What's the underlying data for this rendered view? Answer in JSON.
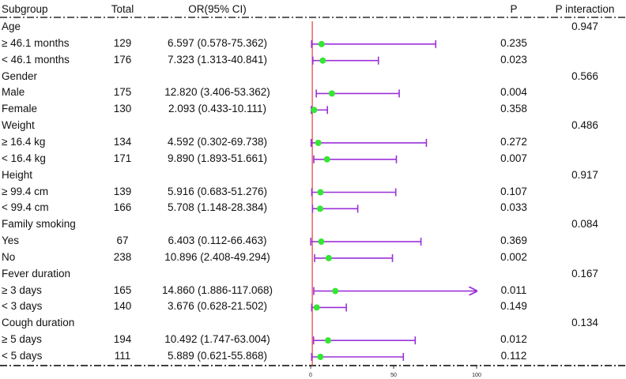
{
  "headers": {
    "subgroup": "Subgroup",
    "total": "Total",
    "or": "OR(95% CI)",
    "p": "P",
    "p_interaction": "P interaction"
  },
  "groups": [
    {
      "name": "Age",
      "p_interaction": "0.947",
      "rows": [
        {
          "label": "≥ 46.1 months",
          "total": "129",
          "or_text": "6.597 (0.578-75.362)",
          "p": "0.235"
        },
        {
          "label": "< 46.1 months",
          "total": "176",
          "or_text": "7.323 (1.313-40.841)",
          "p": "0.023"
        }
      ]
    },
    {
      "name": "Gender",
      "p_interaction": "0.566",
      "rows": [
        {
          "label": "Male",
          "total": "175",
          "or_text": "12.820 (3.406-53.362)",
          "p": "0.004"
        },
        {
          "label": "Female",
          "total": "130",
          "or_text": "2.093 (0.433-10.111)",
          "p": "0.358"
        }
      ]
    },
    {
      "name": "Weight",
      "p_interaction": "0.486",
      "rows": [
        {
          "label": "≥ 16.4 kg",
          "total": "134",
          "or_text": "4.592 (0.302-69.738)",
          "p": "0.272"
        },
        {
          "label": "< 16.4 kg",
          "total": "171",
          "or_text": "9.890 (1.893-51.661)",
          "p": "0.007"
        }
      ]
    },
    {
      "name": "Height",
      "p_interaction": "0.917",
      "rows": [
        {
          "label": "≥ 99.4 cm",
          "total": "139",
          "or_text": "5.916 (0.683-51.276)",
          "p": "0.107"
        },
        {
          "label": "< 99.4 cm",
          "total": "166",
          "or_text": "5.708 (1.148-28.384)",
          "p": "0.033"
        }
      ]
    },
    {
      "name": "Family smoking",
      "p_interaction": "0.084",
      "rows": [
        {
          "label": "Yes",
          "total": "67",
          "or_text": "6.403 (0.112-66.463)",
          "p": "0.369"
        },
        {
          "label": "No",
          "total": "238",
          "or_text": "10.896 (2.408-49.294)",
          "p": "0.002"
        }
      ]
    },
    {
      "name": "Fever duration",
      "p_interaction": "0.167",
      "rows": [
        {
          "label": "≥ 3 days",
          "total": "165",
          "or_text": "14.860 (1.886-117.068)",
          "p": "0.011"
        },
        {
          "label": "< 3 days",
          "total": "140",
          "or_text": "3.676 (0.628-21.502)",
          "p": "0.149"
        }
      ]
    },
    {
      "name": "Cough duration",
      "p_interaction": "0.134",
      "rows": [
        {
          "label": "≥ 5 days",
          "total": "194",
          "or_text": "10.492 (1.747-63.004)",
          "p": "0.012"
        },
        {
          "label": "< 5 days",
          "total": "111",
          "or_text": "5.889 (0.621-55.868)",
          "p": "0.112"
        }
      ]
    }
  ],
  "chart_data": {
    "type": "forest",
    "title": "",
    "xlabel": "",
    "x_ticks": [
      "0",
      "50",
      "100"
    ],
    "xlim": [
      0,
      100
    ],
    "reference_line": 1,
    "series": [
      {
        "label": "≥ 46.1 months",
        "or": 6.597,
        "lower": 0.578,
        "upper": 75.362
      },
      {
        "label": "< 46.1 months",
        "or": 7.323,
        "lower": 1.313,
        "upper": 40.841
      },
      {
        "label": "Male",
        "or": 12.82,
        "lower": 3.406,
        "upper": 53.362
      },
      {
        "label": "Female",
        "or": 2.093,
        "lower": 0.433,
        "upper": 10.111
      },
      {
        "label": "≥ 16.4 kg",
        "or": 4.592,
        "lower": 0.302,
        "upper": 69.738
      },
      {
        "label": "< 16.4 kg",
        "or": 9.89,
        "lower": 1.893,
        "upper": 51.661
      },
      {
        "label": "≥ 99.4 cm",
        "or": 5.916,
        "lower": 0.683,
        "upper": 51.276
      },
      {
        "label": "< 99.4 cm",
        "or": 5.708,
        "lower": 1.148,
        "upper": 28.384
      },
      {
        "label": "Yes",
        "or": 6.403,
        "lower": 0.112,
        "upper": 66.463
      },
      {
        "label": "No",
        "or": 10.896,
        "lower": 2.408,
        "upper": 49.294
      },
      {
        "label": "≥ 3 days",
        "or": 14.86,
        "lower": 1.886,
        "upper": 117.068,
        "clipped": true
      },
      {
        "label": "< 3 days",
        "or": 3.676,
        "lower": 0.628,
        "upper": 21.502
      },
      {
        "label": "≥ 5 days",
        "or": 10.492,
        "lower": 1.747,
        "upper": 63.004
      },
      {
        "label": "< 5 days",
        "or": 5.889,
        "lower": 0.621,
        "upper": 55.868
      }
    ],
    "colors": {
      "ci_line": "#9b30d9",
      "point": "#33e633",
      "reference": "#e33b3b",
      "axis": "#000000"
    }
  }
}
